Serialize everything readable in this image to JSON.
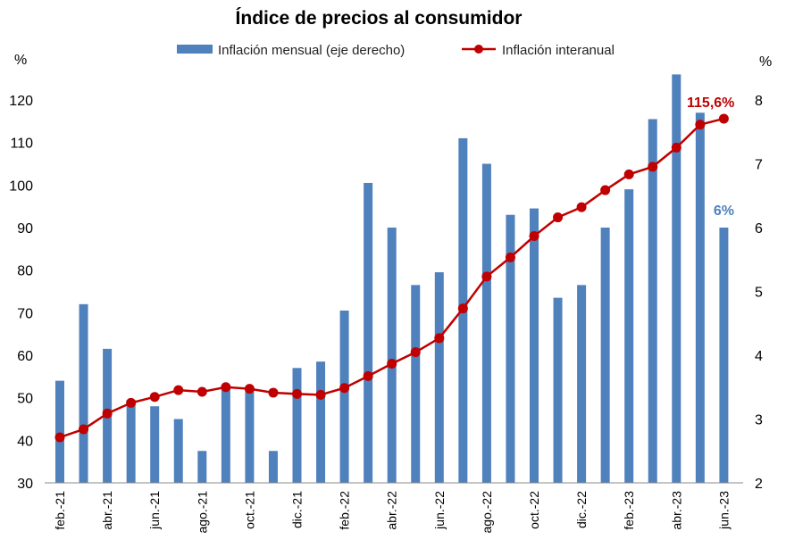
{
  "chart_data": {
    "type": "bar",
    "title": "Índice de precios al consumidor",
    "left_axis_unit": "%",
    "right_axis_unit": "%",
    "left_ylim": [
      30,
      120
    ],
    "left_yticks": [
      30,
      40,
      50,
      60,
      70,
      80,
      90,
      100,
      110,
      120
    ],
    "right_ylim": [
      2,
      8
    ],
    "right_yticks": [
      2,
      3,
      4,
      5,
      6,
      7,
      8
    ],
    "legend_placement": "top-center",
    "grid": false,
    "categories": [
      "feb.-21",
      "mar.-21",
      "abr.-21",
      "may.-21",
      "jun.-21",
      "jul.-21",
      "ago.-21",
      "sep.-21",
      "oct.-21",
      "nov.-21",
      "dic.-21",
      "ene.-22",
      "feb.-22",
      "mar.-22",
      "abr.-22",
      "may.-22",
      "jun.-22",
      "jul.-22",
      "ago.-22",
      "sep.-22",
      "oct.-22",
      "nov.-22",
      "dic.-22",
      "ene.-23",
      "feb.-23",
      "mar.-23",
      "abr.-23",
      "may.-23",
      "jun.-23"
    ],
    "x_tick_labels": [
      "feb.-21",
      "",
      "abr.-21",
      "",
      "jun.-21",
      "",
      "ago.-21",
      "",
      "oct.-21",
      "",
      "dic.-21",
      "",
      "feb.-22",
      "",
      "abr.-22",
      "",
      "jun.-22",
      "",
      "ago.-22",
      "",
      "oct.-22",
      "",
      "dic.-22",
      "",
      "feb.-23",
      "",
      "abr.-23",
      "",
      "jun.-23"
    ],
    "series": [
      {
        "name": "Inflación mensual (eje derecho)",
        "type": "bar",
        "axis": "right",
        "color": "#4F81BD",
        "values": [
          3.6,
          4.8,
          4.1,
          3.3,
          3.2,
          3.0,
          2.5,
          3.5,
          3.5,
          2.5,
          3.8,
          3.9,
          4.7,
          6.7,
          6.0,
          5.1,
          5.3,
          7.4,
          7.0,
          6.2,
          6.3,
          4.9,
          5.1,
          6.0,
          6.6,
          7.7,
          8.4,
          7.8,
          6.0
        ]
      },
      {
        "name": "Inflación interanual",
        "type": "line",
        "axis": "left",
        "color": "#C00000",
        "values": [
          40.7,
          42.6,
          46.3,
          48.8,
          50.2,
          51.8,
          51.4,
          52.5,
          52.1,
          51.2,
          50.9,
          50.7,
          52.3,
          55.1,
          58.0,
          60.7,
          64.0,
          71.0,
          78.5,
          83.0,
          88.0,
          92.4,
          94.8,
          98.8,
          102.5,
          104.3,
          108.8,
          114.2,
          115.6
        ]
      }
    ],
    "annotations": [
      {
        "text": "115,6%",
        "series": "Inflación interanual",
        "index": 28
      },
      {
        "text": "6%",
        "series": "Inflación mensual (eje derecho)",
        "index": 28
      }
    ]
  }
}
